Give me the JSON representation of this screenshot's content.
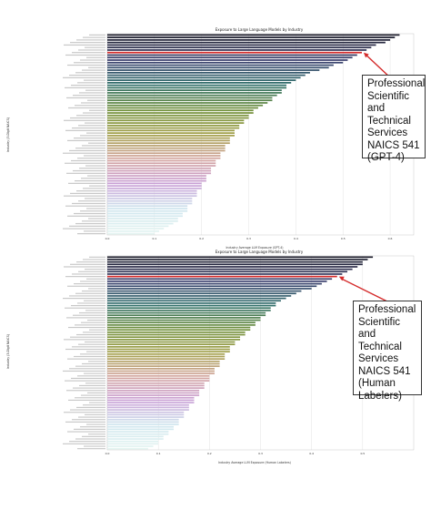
{
  "chart_data": [
    {
      "type": "bar",
      "orientation": "horizontal",
      "title": "Exposure to Large Language Models by Industry",
      "xlabel": "Industry Average LLM Exposure (GPT-4)",
      "ylabel": "Industry (3-Digit NAICS)",
      "xlim": [
        0,
        0.65
      ],
      "xticks": [
        "0.0",
        "0.1",
        "0.2",
        "0.3",
        "0.4",
        "0.5",
        "0.6"
      ],
      "highlight_index": 7,
      "values": [
        0.62,
        0.61,
        0.6,
        0.59,
        0.57,
        0.56,
        0.55,
        0.54,
        0.53,
        0.52,
        0.51,
        0.5,
        0.48,
        0.47,
        0.45,
        0.43,
        0.42,
        0.41,
        0.4,
        0.39,
        0.38,
        0.38,
        0.37,
        0.37,
        0.36,
        0.35,
        0.35,
        0.34,
        0.33,
        0.32,
        0.31,
        0.31,
        0.3,
        0.3,
        0.29,
        0.29,
        0.28,
        0.28,
        0.27,
        0.27,
        0.27,
        0.26,
        0.26,
        0.26,
        0.25,
        0.25,
        0.25,
        0.24,
        0.24,
        0.24,
        0.23,
        0.23,
        0.23,
        0.22,
        0.22,
        0.22,
        0.21,
        0.21,
        0.21,
        0.2,
        0.2,
        0.2,
        0.19,
        0.19,
        0.19,
        0.18,
        0.18,
        0.18,
        0.17,
        0.17,
        0.17,
        0.16,
        0.16,
        0.15,
        0.15,
        0.14,
        0.13,
        0.12,
        0.11,
        0.1
      ],
      "grid": true
    },
    {
      "type": "bar",
      "orientation": "horizontal",
      "title": "Exposure to Large Language Models by Industry",
      "xlabel": "Industry Average LLM Exposure (Human Labelers)",
      "ylabel": "Industry (3-Digit NAICS)",
      "xlim": [
        0,
        0.6
      ],
      "xticks": [
        "0.0",
        "0.1",
        "0.2",
        "0.3",
        "0.4",
        "0.5"
      ],
      "highlight_index": 8,
      "values": [
        0.52,
        0.51,
        0.5,
        0.5,
        0.49,
        0.48,
        0.47,
        0.46,
        0.45,
        0.44,
        0.43,
        0.42,
        0.41,
        0.4,
        0.38,
        0.37,
        0.36,
        0.35,
        0.34,
        0.33,
        0.33,
        0.32,
        0.32,
        0.31,
        0.31,
        0.3,
        0.3,
        0.29,
        0.29,
        0.28,
        0.28,
        0.27,
        0.27,
        0.26,
        0.26,
        0.25,
        0.25,
        0.24,
        0.24,
        0.24,
        0.23,
        0.23,
        0.23,
        0.22,
        0.22,
        0.22,
        0.21,
        0.21,
        0.21,
        0.2,
        0.2,
        0.2,
        0.19,
        0.19,
        0.19,
        0.18,
        0.18,
        0.18,
        0.17,
        0.17,
        0.17,
        0.16,
        0.16,
        0.16,
        0.15,
        0.15,
        0.15,
        0.14,
        0.14,
        0.14,
        0.13,
        0.13,
        0.12,
        0.12,
        0.11,
        0.11,
        0.1,
        0.1,
        0.09,
        0.08
      ],
      "grid": true
    }
  ],
  "callouts": {
    "top": {
      "lines": [
        "Professional",
        "Scientific and",
        "Technical",
        "Services",
        "NAICS 541",
        "(GPT-4)"
      ]
    },
    "bottom": {
      "lines": [
        "Professional",
        "Scientific and",
        "Technical",
        "Services",
        "NAICS 541",
        "(Human",
        "Labelers)"
      ]
    }
  },
  "colors": {
    "highlight": "#d42a2a",
    "arrow": "#d42a2a",
    "gradient": [
      "#1c1c2a",
      "#3b3f6e",
      "#2f6f6a",
      "#6f8f3a",
      "#a3a04a",
      "#d4a5a0",
      "#c9a0d6",
      "#cfe6ee",
      "#e4f4f1"
    ]
  }
}
